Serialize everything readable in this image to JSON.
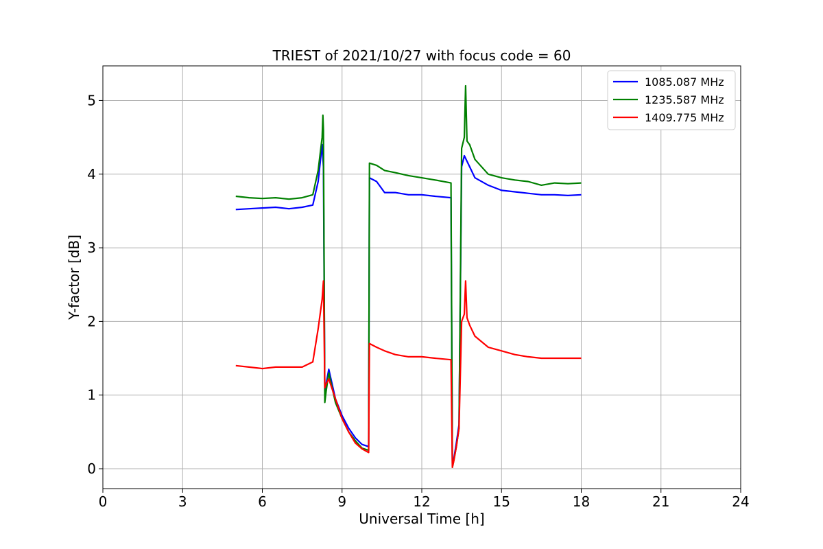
{
  "chart_data": {
    "type": "line",
    "title": "TRIEST of 2021/10/27 with focus code = 60",
    "xlabel": "Universal Time [h]",
    "ylabel": "Y-factor [dB]",
    "xlim": [
      0,
      24
    ],
    "ylim": [
      -0.27,
      5.47
    ],
    "xticks": [
      0,
      3,
      6,
      9,
      12,
      15,
      18,
      21,
      24
    ],
    "yticks": [
      0,
      1,
      2,
      3,
      4,
      5
    ],
    "grid": true,
    "legend": "top-right",
    "series": [
      {
        "name": "1085.087 MHz",
        "color": "#0000ff",
        "x": [
          5.0,
          5.5,
          6.0,
          6.5,
          7.0,
          7.5,
          7.9,
          8.1,
          8.25,
          8.3,
          8.35,
          8.4,
          8.5,
          8.75,
          9.0,
          9.25,
          9.5,
          9.75,
          10.0,
          10.03,
          10.3,
          10.6,
          11.0,
          11.5,
          12.0,
          12.5,
          13.1,
          13.15,
          13.2,
          13.3,
          13.4,
          13.5,
          13.6,
          13.8,
          14.0,
          14.5,
          15.0,
          15.5,
          16.0,
          16.5,
          17.0,
          17.5,
          18.0
        ],
        "y": [
          3.52,
          3.53,
          3.54,
          3.55,
          3.53,
          3.55,
          3.58,
          3.9,
          4.4,
          4.1,
          1.05,
          1.15,
          1.35,
          0.95,
          0.72,
          0.55,
          0.42,
          0.33,
          0.3,
          3.95,
          3.9,
          3.75,
          3.75,
          3.72,
          3.72,
          3.7,
          3.68,
          0.05,
          0.12,
          0.35,
          0.6,
          4.1,
          4.25,
          4.1,
          3.95,
          3.85,
          3.78,
          3.76,
          3.74,
          3.72,
          3.72,
          3.71,
          3.72
        ]
      },
      {
        "name": "1235.587 MHz",
        "color": "#008000",
        "x": [
          5.0,
          5.5,
          6.0,
          6.5,
          7.0,
          7.5,
          7.9,
          8.1,
          8.25,
          8.28,
          8.3,
          8.35,
          8.4,
          8.5,
          8.75,
          9.0,
          9.25,
          9.5,
          9.75,
          10.0,
          10.03,
          10.3,
          10.6,
          11.0,
          11.5,
          12.0,
          12.5,
          13.1,
          13.15,
          13.2,
          13.3,
          13.4,
          13.5,
          13.6,
          13.65,
          13.7,
          13.8,
          14.0,
          14.5,
          15.0,
          15.5,
          16.0,
          16.5,
          17.0,
          17.5,
          18.0
        ],
        "y": [
          3.7,
          3.68,
          3.67,
          3.68,
          3.66,
          3.68,
          3.72,
          4.05,
          4.5,
          4.8,
          4.6,
          0.9,
          1.05,
          1.3,
          0.9,
          0.68,
          0.5,
          0.38,
          0.28,
          0.25,
          4.15,
          4.12,
          4.05,
          4.02,
          3.98,
          3.95,
          3.92,
          3.88,
          0.02,
          0.1,
          0.3,
          0.55,
          4.35,
          4.5,
          5.2,
          4.45,
          4.4,
          4.2,
          4.0,
          3.95,
          3.92,
          3.9,
          3.85,
          3.88,
          3.87,
          3.88
        ]
      },
      {
        "name": "1409.775 MHz",
        "color": "#ff0000",
        "x": [
          5.0,
          5.5,
          6.0,
          6.5,
          7.0,
          7.5,
          7.9,
          8.1,
          8.25,
          8.3,
          8.35,
          8.4,
          8.5,
          8.75,
          9.0,
          9.25,
          9.5,
          9.75,
          10.0,
          10.03,
          10.3,
          10.6,
          11.0,
          11.5,
          12.0,
          12.5,
          13.1,
          13.15,
          13.2,
          13.3,
          13.4,
          13.5,
          13.6,
          13.65,
          13.7,
          13.8,
          14.0,
          14.5,
          15.0,
          15.5,
          16.0,
          16.5,
          17.0,
          17.5,
          18.0
        ],
        "y": [
          1.4,
          1.38,
          1.36,
          1.38,
          1.38,
          1.38,
          1.45,
          1.9,
          2.3,
          2.55,
          1.1,
          1.15,
          1.22,
          0.95,
          0.68,
          0.5,
          0.35,
          0.27,
          0.22,
          1.7,
          1.65,
          1.6,
          1.55,
          1.52,
          1.52,
          1.5,
          1.48,
          0.02,
          0.1,
          0.3,
          0.55,
          2.0,
          2.1,
          2.55,
          2.05,
          1.95,
          1.8,
          1.65,
          1.6,
          1.55,
          1.52,
          1.5,
          1.5,
          1.5,
          1.5
        ]
      }
    ]
  }
}
